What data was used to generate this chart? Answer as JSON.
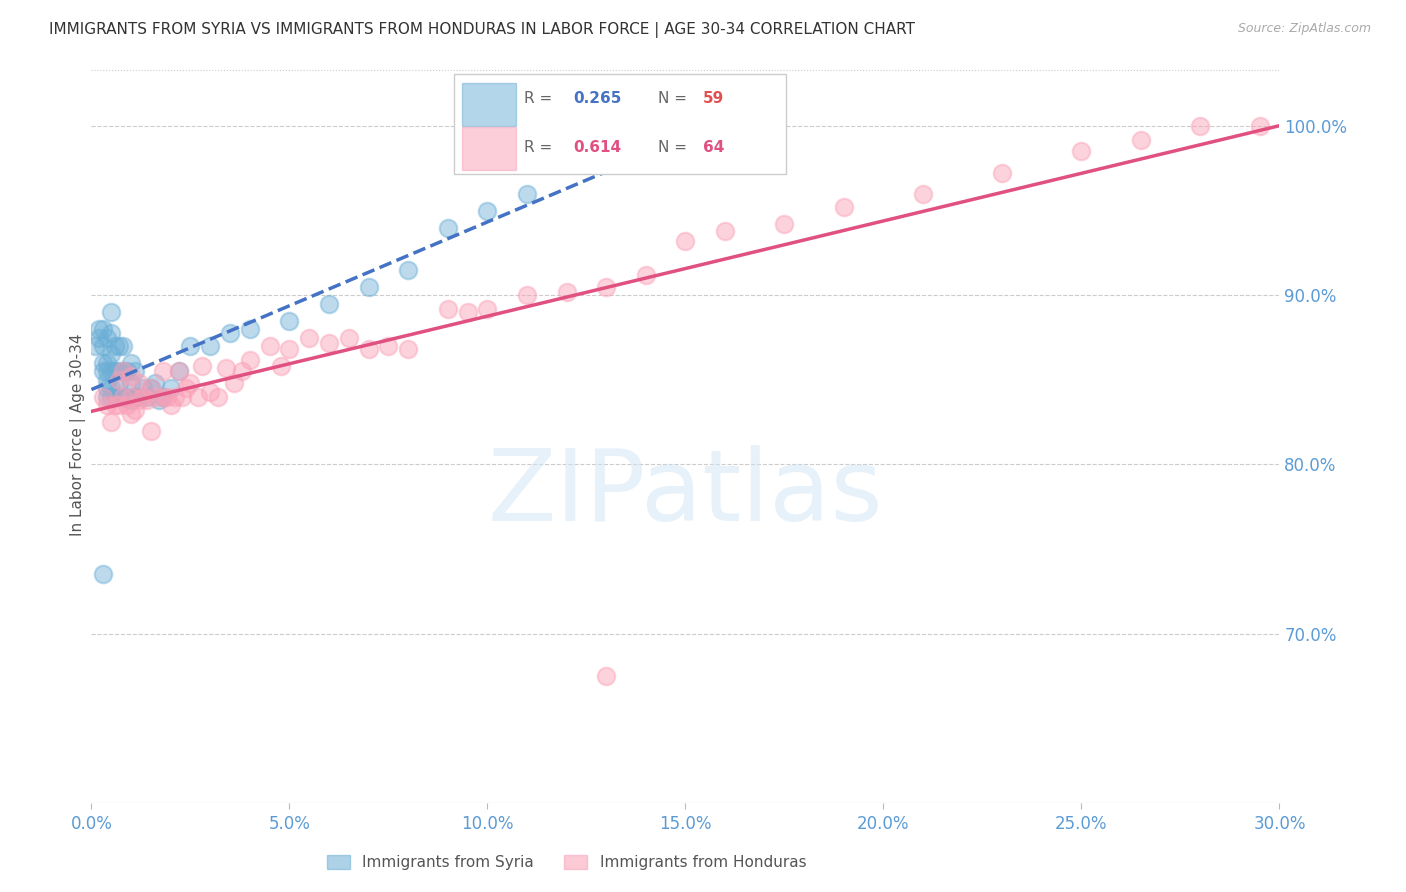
{
  "title": "IMMIGRANTS FROM SYRIA VS IMMIGRANTS FROM HONDURAS IN LABOR FORCE | AGE 30-34 CORRELATION CHART",
  "source": "Source: ZipAtlas.com",
  "ylabel": "In Labor Force | Age 30-34",
  "watermark": "ZIPatlas",
  "xmin": 0.0,
  "xmax": 0.3,
  "ymin": 0.6,
  "ymax": 1.035,
  "yticks": [
    0.7,
    0.8,
    0.9,
    1.0
  ],
  "ytick_labels": [
    "70.0%",
    "80.0%",
    "90.0%",
    "100.0%"
  ],
  "xticks": [
    0.0,
    0.05,
    0.1,
    0.15,
    0.2,
    0.25,
    0.3
  ],
  "xtick_labels": [
    "0.0%",
    "5.0%",
    "10.0%",
    "15.0%",
    "20.0%",
    "25.0%",
    "30.0%"
  ],
  "syria_color": "#6baed6",
  "honduras_color": "#fa9fb5",
  "syria_line_color": "#4472c4",
  "honduras_line_color": "#e05080",
  "syria_R": "0.265",
  "syria_N": "59",
  "honduras_R": "0.614",
  "honduras_N": "64",
  "axis_color": "#5b9bd5",
  "grid_color": "#cccccc",
  "syria_scatter_x": [
    0.001,
    0.002,
    0.002,
    0.003,
    0.003,
    0.003,
    0.003,
    0.004,
    0.004,
    0.004,
    0.004,
    0.004,
    0.004,
    0.005,
    0.005,
    0.005,
    0.005,
    0.005,
    0.005,
    0.006,
    0.006,
    0.006,
    0.007,
    0.007,
    0.007,
    0.007,
    0.008,
    0.008,
    0.008,
    0.009,
    0.009,
    0.01,
    0.01,
    0.01,
    0.011,
    0.011,
    0.012,
    0.013,
    0.014,
    0.015,
    0.016,
    0.017,
    0.018,
    0.02,
    0.022,
    0.025,
    0.03,
    0.035,
    0.04,
    0.05,
    0.06,
    0.07,
    0.08,
    0.09,
    0.1,
    0.11,
    0.13,
    0.15,
    0.003
  ],
  "syria_scatter_y": [
    0.87,
    0.875,
    0.88,
    0.855,
    0.86,
    0.87,
    0.88,
    0.84,
    0.845,
    0.85,
    0.855,
    0.86,
    0.875,
    0.84,
    0.845,
    0.855,
    0.865,
    0.878,
    0.89,
    0.84,
    0.855,
    0.87,
    0.84,
    0.848,
    0.855,
    0.87,
    0.84,
    0.855,
    0.87,
    0.84,
    0.855,
    0.838,
    0.848,
    0.86,
    0.84,
    0.855,
    0.84,
    0.845,
    0.84,
    0.845,
    0.848,
    0.838,
    0.84,
    0.845,
    0.855,
    0.87,
    0.87,
    0.878,
    0.88,
    0.885,
    0.895,
    0.905,
    0.915,
    0.94,
    0.95,
    0.96,
    0.985,
    1.0,
    0.735
  ],
  "honduras_scatter_x": [
    0.003,
    0.004,
    0.005,
    0.006,
    0.007,
    0.007,
    0.008,
    0.008,
    0.009,
    0.01,
    0.01,
    0.01,
    0.011,
    0.012,
    0.012,
    0.013,
    0.014,
    0.015,
    0.015,
    0.016,
    0.018,
    0.018,
    0.019,
    0.02,
    0.021,
    0.022,
    0.023,
    0.024,
    0.025,
    0.027,
    0.028,
    0.03,
    0.032,
    0.034,
    0.036,
    0.038,
    0.04,
    0.045,
    0.048,
    0.05,
    0.055,
    0.06,
    0.065,
    0.07,
    0.075,
    0.08,
    0.09,
    0.095,
    0.1,
    0.11,
    0.12,
    0.13,
    0.14,
    0.15,
    0.16,
    0.175,
    0.19,
    0.21,
    0.23,
    0.25,
    0.265,
    0.28,
    0.295,
    0.13
  ],
  "honduras_scatter_y": [
    0.84,
    0.835,
    0.825,
    0.835,
    0.835,
    0.85,
    0.84,
    0.855,
    0.835,
    0.83,
    0.84,
    0.852,
    0.832,
    0.838,
    0.848,
    0.84,
    0.838,
    0.82,
    0.845,
    0.84,
    0.84,
    0.855,
    0.84,
    0.835,
    0.84,
    0.855,
    0.84,
    0.845,
    0.848,
    0.84,
    0.858,
    0.843,
    0.84,
    0.857,
    0.848,
    0.855,
    0.862,
    0.87,
    0.858,
    0.868,
    0.875,
    0.872,
    0.875,
    0.868,
    0.87,
    0.868,
    0.892,
    0.89,
    0.892,
    0.9,
    0.902,
    0.905,
    0.912,
    0.932,
    0.938,
    0.942,
    0.952,
    0.96,
    0.972,
    0.985,
    0.992,
    1.0,
    1.0,
    0.675
  ]
}
